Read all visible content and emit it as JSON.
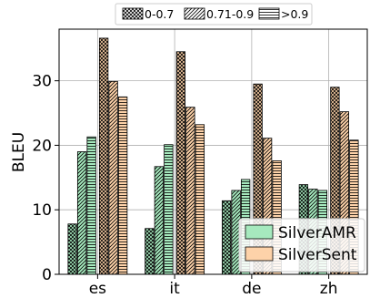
{
  "chart_data": {
    "type": "bar",
    "title": "",
    "xlabel": "",
    "ylabel": "BLEU",
    "ylim": [
      0,
      38
    ],
    "yticks": [
      0,
      10,
      20,
      30
    ],
    "grid": true,
    "categories": [
      "es",
      "it",
      "de",
      "zh"
    ],
    "pattern_legend": [
      "0-0.7",
      "0.71-0.9",
      ">0.9"
    ],
    "pattern_legend_placement": "top-center",
    "series_legend_placement": "bottom-right",
    "series": [
      {
        "name": "SilverAMR",
        "color": "#a6e9be",
        "values": [
          [
            7.8,
            19.0,
            21.3
          ],
          [
            7.1,
            16.7,
            20.1
          ],
          [
            11.4,
            13.0,
            14.7
          ],
          [
            13.9,
            13.2,
            13.0
          ]
        ]
      },
      {
        "name": "SilverSent",
        "color": "#fdd2a9",
        "values": [
          [
            36.6,
            29.9,
            27.5
          ],
          [
            34.5,
            25.9,
            23.2
          ],
          [
            29.5,
            21.1,
            17.6
          ],
          [
            29.0,
            25.2,
            20.8
          ]
        ]
      }
    ]
  }
}
